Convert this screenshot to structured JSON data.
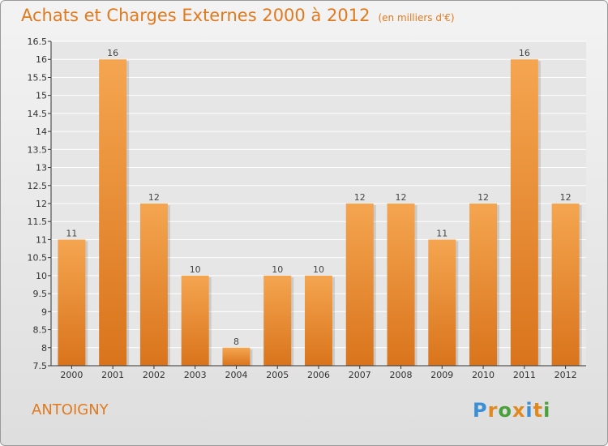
{
  "header": {
    "title": "Achats et Charges Externes 2000 à 2012",
    "subtitle": "(en milliers d'€)"
  },
  "commune": "ANTOIGNY",
  "logo": {
    "text": "Proxiti",
    "letters": [
      {
        "ch": "P",
        "color": "#3b8fd6"
      },
      {
        "ch": "r",
        "color": "#e0891f"
      },
      {
        "ch": "o",
        "color": "#4aa03a"
      },
      {
        "ch": "x",
        "color": "#e0891f"
      },
      {
        "ch": "i",
        "color": "#3b8fd6"
      },
      {
        "ch": "t",
        "color": "#e0891f"
      },
      {
        "ch": "i",
        "color": "#4aa03a"
      }
    ]
  },
  "chart_data": {
    "type": "bar",
    "title": "Achats et Charges Externes 2000 à 2012",
    "subtitle": "(en milliers d'€)",
    "categories": [
      "2000",
      "2001",
      "2002",
      "2003",
      "2004",
      "2005",
      "2006",
      "2007",
      "2008",
      "2009",
      "2010",
      "2011",
      "2012"
    ],
    "values": [
      11,
      16,
      12,
      10,
      8,
      10,
      10,
      12,
      12,
      11,
      12,
      16,
      12
    ],
    "data_labels": [
      "11",
      "16",
      "12",
      "10",
      "8",
      "10",
      "10",
      "12",
      "12",
      "11",
      "12",
      "16",
      "12"
    ],
    "ylim": [
      7.5,
      16.5
    ],
    "yticks": [
      7.5,
      8,
      8.5,
      9,
      9.5,
      10,
      10.5,
      11,
      11.5,
      12,
      12.5,
      13,
      13.5,
      14,
      14.5,
      15,
      15.5,
      16,
      16.5
    ],
    "ytick_labels": [
      "7.5",
      "8",
      "8.5",
      "9",
      "9.5",
      "10",
      "10.5",
      "11",
      "11.5",
      "12",
      "12.5",
      "13",
      "13.5",
      "14",
      "14.5",
      "15",
      "15.5",
      "16",
      "16.5"
    ],
    "xlabel": "",
    "ylabel": "",
    "grid": true,
    "colors": {
      "bar_light": "#f5a550",
      "bar_dark": "#d9741c",
      "text": "#e07a1f",
      "axis": "#333333",
      "grid": "#ffffff"
    }
  }
}
